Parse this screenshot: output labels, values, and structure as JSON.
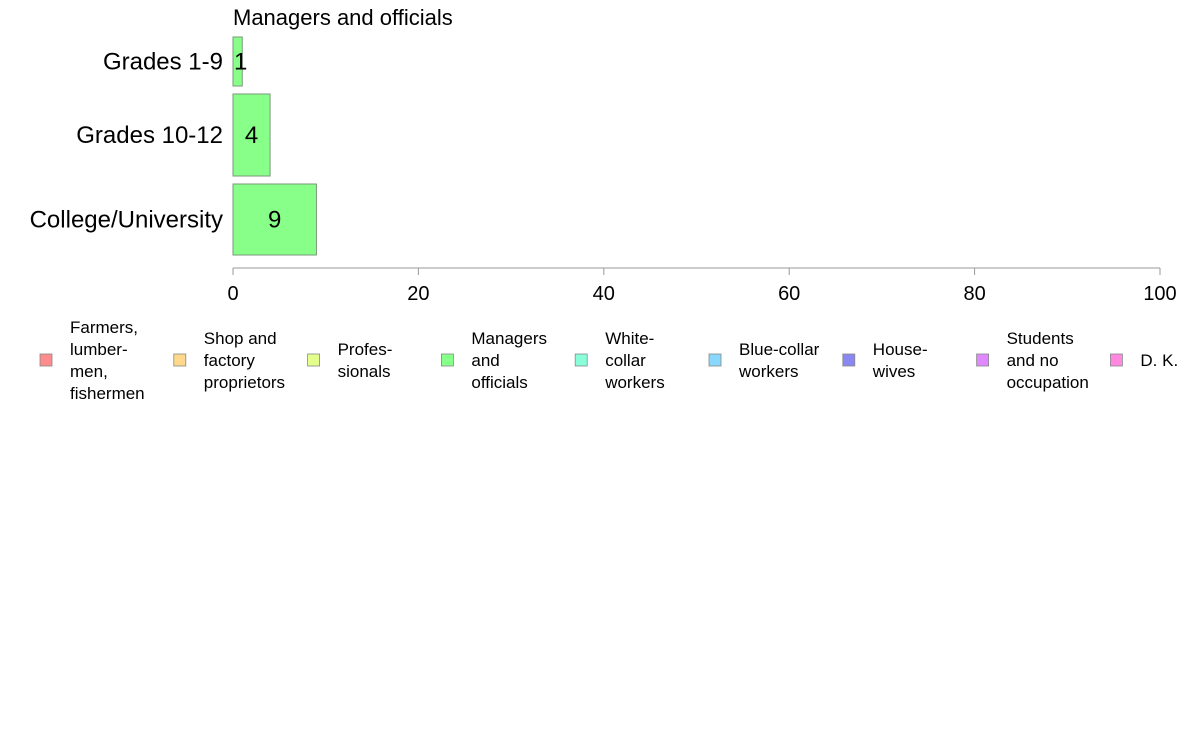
{
  "chart_data": {
    "type": "bar",
    "orientation": "horizontal",
    "title": "Managers and officials",
    "categories": [
      "Grades 1-9",
      "Grades 10-12",
      "College/University"
    ],
    "series": [
      {
        "name": "Managers and officials",
        "values": [
          1,
          4,
          9
        ],
        "color": "#88ff88"
      }
    ],
    "xlim": [
      0,
      100
    ],
    "xticks": [
      0,
      20,
      40,
      60,
      80,
      100
    ],
    "grid": false,
    "legend_position": "bottom",
    "legend": [
      {
        "label": "Farmers, lumber- men, fishermen",
        "lines": [
          "Farmers,",
          "lumber-",
          "men,",
          "fishermen"
        ],
        "color": "#ff8c8c"
      },
      {
        "label": "Shop and factory proprietors",
        "lines": [
          "Shop and",
          "factory",
          "proprietors"
        ],
        "color": "#ffd88c"
      },
      {
        "label": "Profes- sionals",
        "lines": [
          "Profes-",
          "sionals"
        ],
        "color": "#e4ff8c"
      },
      {
        "label": "Managers and officials",
        "lines": [
          "Managers",
          "and",
          "officials"
        ],
        "color": "#88ff88"
      },
      {
        "label": "White- collar workers",
        "lines": [
          "White-",
          "collar",
          "workers"
        ],
        "color": "#88ffd8"
      },
      {
        "label": "Blue-collar workers",
        "lines": [
          "Blue-collar",
          "workers"
        ],
        "color": "#88d8ff"
      },
      {
        "label": "House- wives",
        "lines": [
          "House-",
          "wives"
        ],
        "color": "#8888f0"
      },
      {
        "label": "Students and no occupation",
        "lines": [
          "Students",
          "and no",
          "occupation"
        ],
        "color": "#e088ff"
      },
      {
        "label": "D. K.",
        "lines": [
          "D. K."
        ],
        "color": "#ff88e0"
      }
    ]
  }
}
